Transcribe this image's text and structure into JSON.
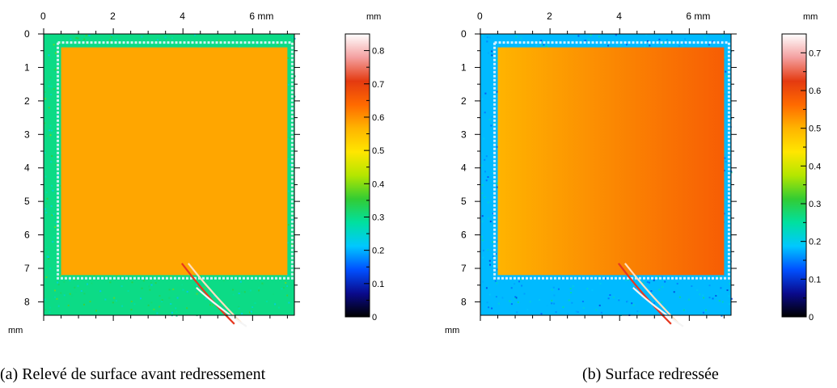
{
  "figure": {
    "captions": [
      "(a) Relevé de surface avant redressement",
      "(b) Surface redressée"
    ]
  },
  "colors": {
    "background_field": "#35d0c6",
    "plateau": "#f39a1e",
    "colormap": [
      "#000000",
      "#0a0a8c",
      "#0050ff",
      "#00c8ff",
      "#00e0a0",
      "#33cc33",
      "#b4e600",
      "#ffe600",
      "#ffb400",
      "#ff6a00",
      "#e43a10",
      "#f4a0a0",
      "#ffffff"
    ]
  },
  "chart_data": [
    {
      "type": "heatmap",
      "title": "",
      "caption": "(a) Relevé de surface avant redressement",
      "x_unit": "mm",
      "y_unit": "mm",
      "x_tick_labels": [
        "0",
        "2",
        "4",
        "6 mm"
      ],
      "x_ticks": [
        0,
        2,
        4,
        6
      ],
      "y_tick_labels": [
        "0",
        "1",
        "2",
        "3",
        "4",
        "5",
        "6",
        "7",
        "8"
      ],
      "y_ticks": [
        0,
        1,
        2,
        3,
        4,
        5,
        6,
        7,
        8
      ],
      "xlim": [
        0,
        7.2
      ],
      "ylim": [
        0,
        8.4
      ],
      "plateau_x_mm": [
        0.5,
        7.0
      ],
      "plateau_y_mm": [
        0.4,
        7.2
      ],
      "plateau_height_mm": 0.58,
      "background_height_mm": 0.3,
      "colorbar": {
        "unit": "mm",
        "range": [
          0,
          0.85
        ],
        "tick_labels": [
          "0",
          "0.1",
          "0.2",
          "0.3",
          "0.4",
          "0.5",
          "0.6",
          "0.7",
          "0.8"
        ],
        "ticks": [
          0,
          0.1,
          0.2,
          0.3,
          0.4,
          0.5,
          0.6,
          0.7,
          0.8
        ]
      }
    },
    {
      "type": "heatmap",
      "title": "",
      "caption": "(b) Surface redressée",
      "x_unit": "mm",
      "y_unit": "mm",
      "x_tick_labels": [
        "0",
        "2",
        "4",
        "6 mm"
      ],
      "x_ticks": [
        0,
        2,
        4,
        6
      ],
      "y_tick_labels": [
        "0",
        "1",
        "2",
        "3",
        "4",
        "5",
        "6",
        "7",
        "8"
      ],
      "y_ticks": [
        0,
        1,
        2,
        3,
        4,
        5,
        6,
        7,
        8
      ],
      "xlim": [
        0,
        7.2
      ],
      "ylim": [
        0,
        8.4
      ],
      "plateau_x_mm": [
        0.5,
        7.0
      ],
      "plateau_y_mm": [
        0.4,
        7.2
      ],
      "plateau_height_gradient_mm": [
        0.5,
        0.58
      ],
      "background_height_mm": 0.18,
      "colorbar": {
        "unit": "mm",
        "range": [
          0,
          0.75
        ],
        "tick_labels": [
          "0",
          "0.1",
          "0.2",
          "0.3",
          "0.4",
          "0.5",
          "0.6",
          "0.7"
        ],
        "ticks": [
          0,
          0.1,
          0.2,
          0.3,
          0.4,
          0.5,
          0.6,
          0.7
        ]
      }
    }
  ]
}
